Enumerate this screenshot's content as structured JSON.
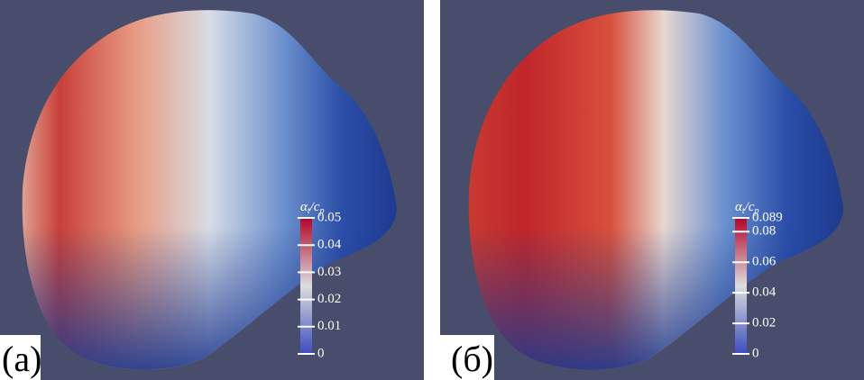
{
  "panels": [
    {
      "label": "(a)",
      "colorbar": {
        "title": {
          "main": "α",
          "sub1": "t",
          "mid": "/c",
          "sub2": "p"
        },
        "range": [
          0,
          0.05
        ],
        "ticks": [
          0,
          0.01,
          0.02,
          0.03,
          0.04,
          0.05
        ]
      }
    },
    {
      "label": "(б)",
      "colorbar": {
        "title": {
          "main": "α",
          "sub1": "t",
          "mid": "/c",
          "sub2": "p"
        },
        "range": [
          0,
          0.089
        ],
        "ticks": [
          0,
          0.02,
          0.04,
          0.06,
          0.08,
          0.089
        ]
      }
    }
  ]
}
